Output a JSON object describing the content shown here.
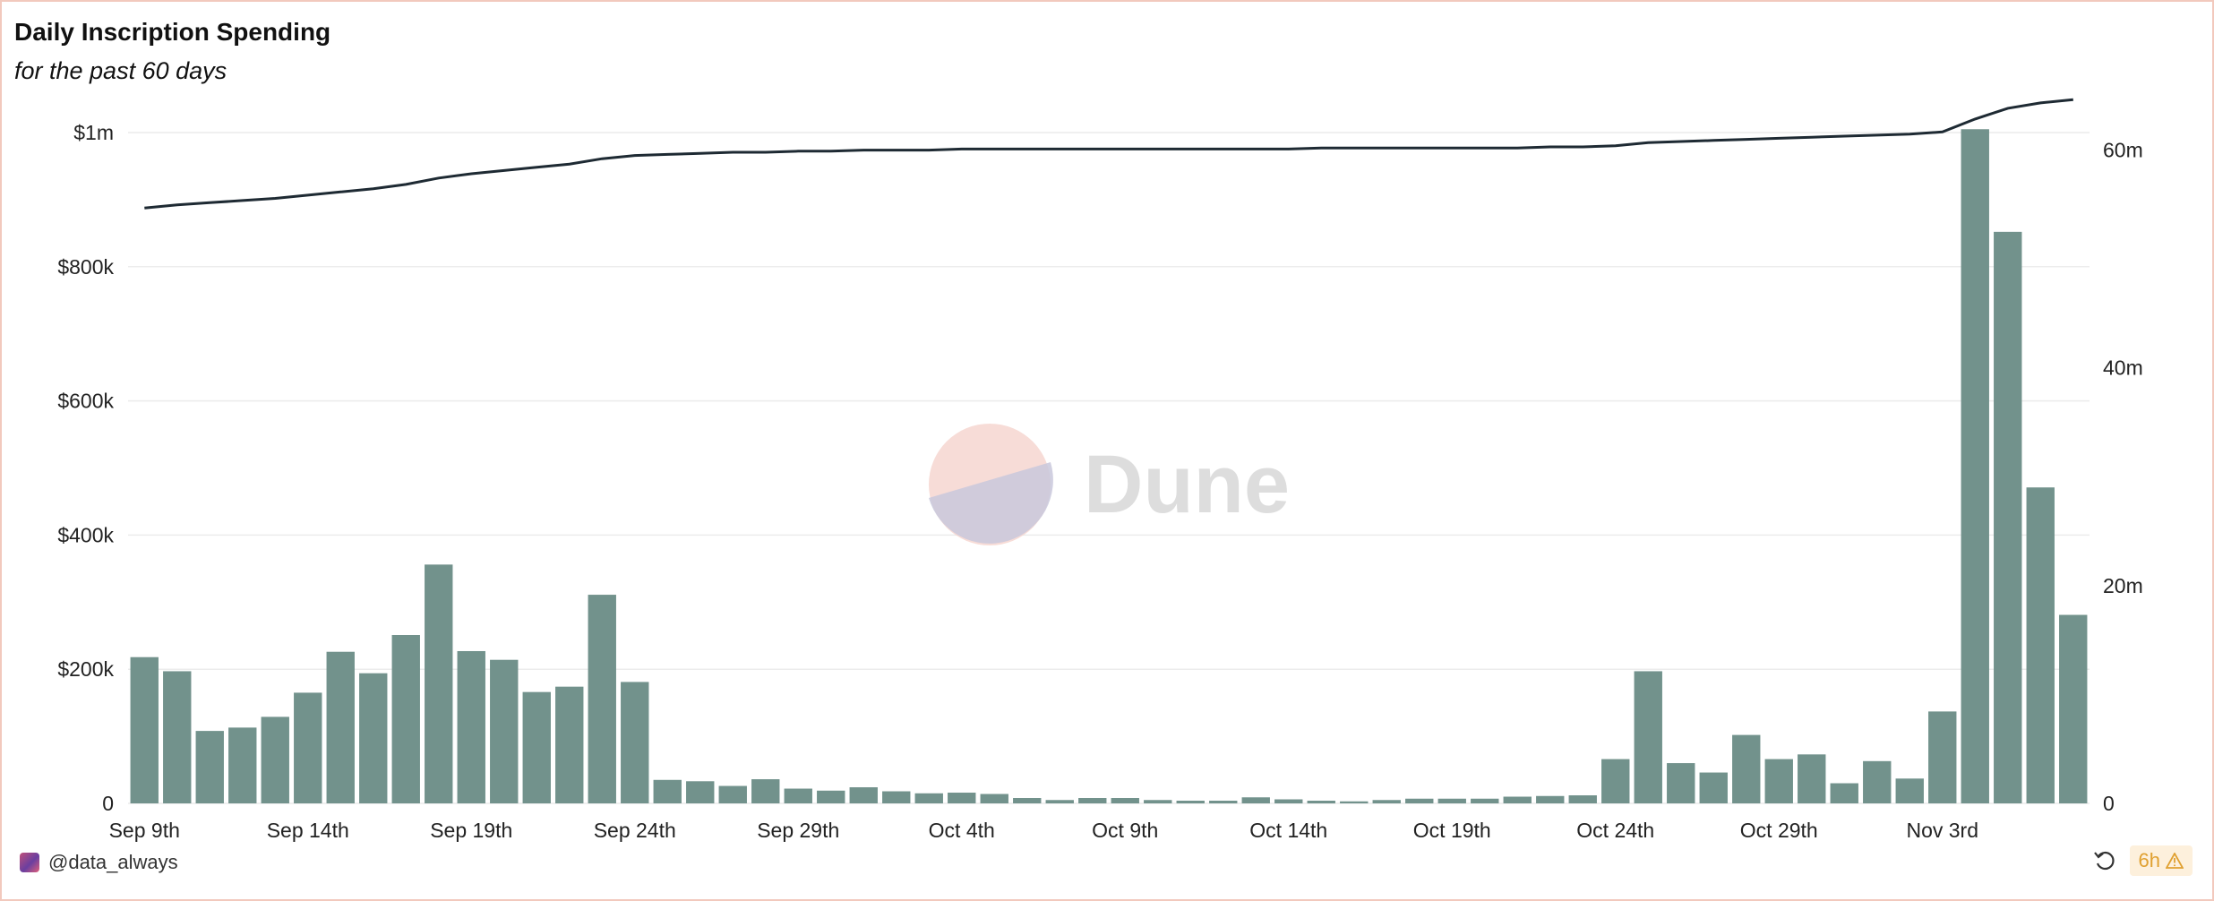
{
  "header": {
    "title": "Daily Inscription Spending",
    "subtitle": "for the past 60 days"
  },
  "watermark": {
    "text": "Dune"
  },
  "footer": {
    "author": "@data_always",
    "age": "6h",
    "warning_icon": "warning-icon",
    "refresh_icon": "refresh-icon"
  },
  "colors": {
    "bars": "#72928c",
    "line": "#1e2a33",
    "grid": "#ececec",
    "axis_text": "#222222",
    "badge_text": "#e0a030",
    "badge_bg": "#fdf0dc",
    "border": "#f2c9bd"
  },
  "chart_data": {
    "type": "bar",
    "title": "Daily Inscription Spending",
    "subtitle": "for the past 60 days",
    "x_tick_labels": [
      "Sep 9th",
      "Sep 14th",
      "Sep 19th",
      "Sep 24th",
      "Sep 29th",
      "Oct 4th",
      "Oct 9th",
      "Oct 14th",
      "Oct 19th",
      "Oct 24th",
      "Oct 29th",
      "Nov 3rd"
    ],
    "x_tick_day_index": [
      0,
      5,
      10,
      15,
      20,
      25,
      30,
      35,
      40,
      45,
      50,
      55
    ],
    "left_axis": {
      "ticks": [
        0,
        200000,
        400000,
        600000,
        800000,
        1000000
      ],
      "tick_labels": [
        "0",
        "$200k",
        "$400k",
        "$600k",
        "$800k",
        "$1m"
      ],
      "ylim": [
        0,
        1000000
      ]
    },
    "right_axis": {
      "ticks": [
        0,
        20000000,
        40000000,
        60000000
      ],
      "tick_labels": [
        "0",
        "20m",
        "40m",
        "60m"
      ],
      "ylim": [
        0,
        62000000
      ]
    },
    "grid": true,
    "series": [
      {
        "type": "bar",
        "axis": "left",
        "values": [
          218000,
          197000,
          108000,
          113000,
          129000,
          165000,
          226000,
          194000,
          251000,
          356000,
          227000,
          214000,
          166000,
          174000,
          311000,
          181000,
          35000,
          33000,
          26000,
          36000,
          22000,
          19000,
          24000,
          18000,
          15000,
          16000,
          14000,
          8000,
          5000,
          8000,
          8000,
          5000,
          4000,
          4000,
          9000,
          6000,
          4000,
          3000,
          5000,
          7000,
          7000,
          7000,
          10000,
          11000,
          12000,
          66000,
          197000,
          60000,
          46000,
          102000,
          66000,
          73000,
          30000,
          63000,
          37000,
          137000,
          1005000,
          852000,
          471000,
          281000
        ]
      },
      {
        "type": "line",
        "axis": "right",
        "values": [
          55.5,
          55.8,
          56.0,
          56.2,
          56.4,
          56.7,
          57.0,
          57.3,
          57.7,
          58.3,
          58.7,
          59.0,
          59.3,
          59.6,
          60.1,
          60.4,
          60.5,
          60.6,
          60.7,
          60.7,
          60.8,
          60.8,
          60.9,
          60.9,
          60.9,
          61.0,
          61.0,
          61.0,
          61.0,
          61.0,
          61.0,
          61.0,
          61.0,
          61.0,
          61.0,
          61.0,
          61.1,
          61.1,
          61.1,
          61.1,
          61.1,
          61.1,
          61.1,
          61.2,
          61.2,
          61.3,
          61.6,
          61.7,
          61.8,
          61.9,
          62.0,
          62.1,
          62.2,
          62.3,
          62.4,
          62.6,
          63.8,
          64.8,
          65.3,
          65.6
        ]
      }
    ]
  }
}
